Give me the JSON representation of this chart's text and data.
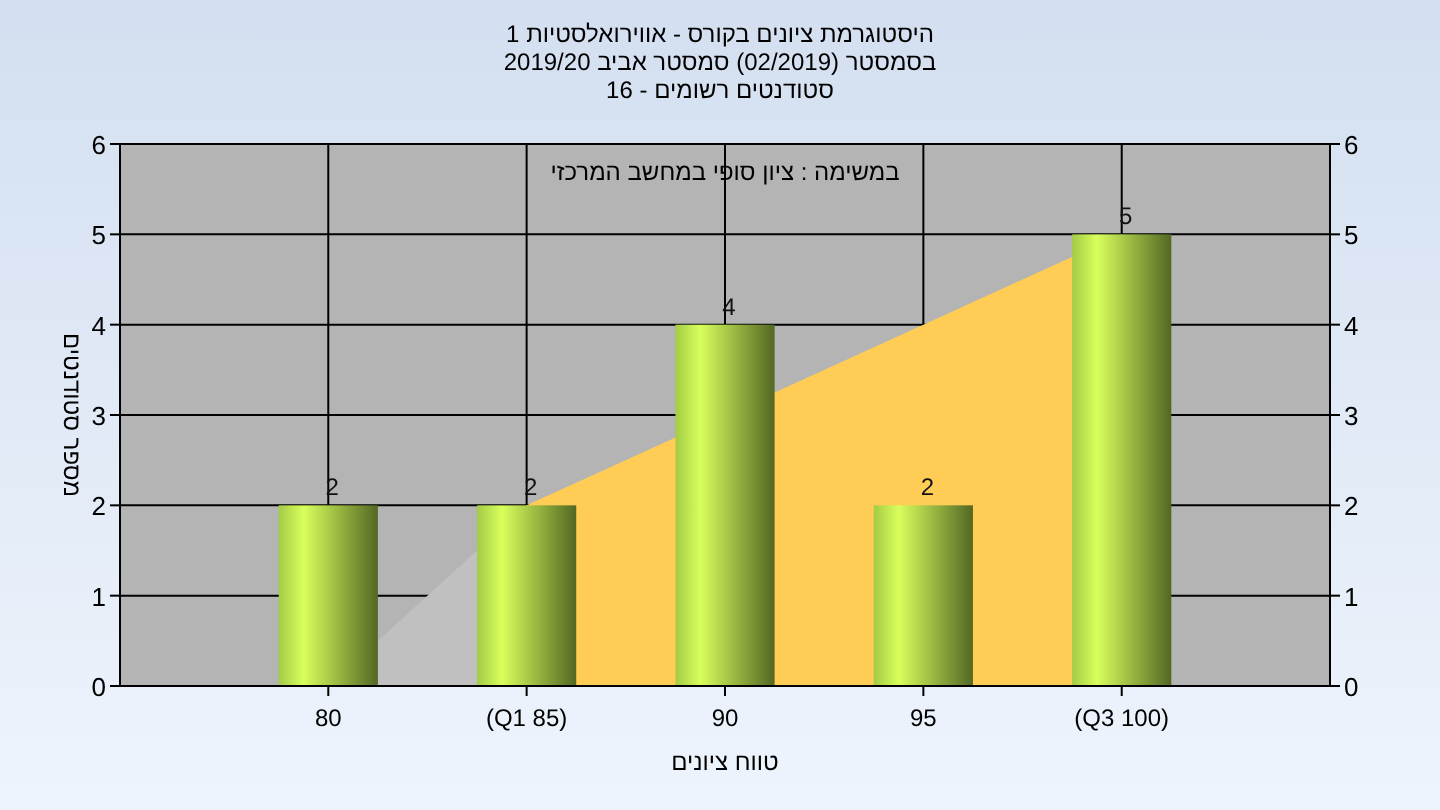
{
  "chart_data": {
    "type": "bar",
    "title": "היסטוגרמת ציונים בקורס - אווירואלסטיות 1",
    "subtitle": "בסמסטר  (02/2019)  סמסטר אביב 2019/20\nסטודנטים רשומים - 16",
    "xlabel": "טווח ציונים",
    "ylabel": "מספר סטודנטים",
    "annotations": [
      "במשימה : ציון סופי במחשב המרכזי"
    ],
    "categories": [
      "80",
      "(Q1 85)",
      "90",
      "95",
      "(Q3 100)"
    ],
    "series": [
      {
        "type": "area",
        "color": "#c0c0c0",
        "values": [
          0,
          2,
          null,
          null,
          null
        ]
      },
      {
        "type": "area",
        "color": "#ffcc55",
        "values": [
          null,
          2,
          null,
          4,
          5
        ]
      },
      {
        "color": "#8db03c",
        "values": [
          2,
          2,
          4,
          2,
          5
        ],
        "value_labels": [
          "2",
          "2",
          "4",
          "2",
          "5"
        ]
      }
    ],
    "ylim": [
      0,
      6
    ],
    "yticks": [
      0,
      1,
      2,
      3,
      4,
      5,
      6
    ],
    "y2lim": [
      0,
      6
    ],
    "y2ticks": [
      0,
      1,
      2,
      3,
      4,
      5,
      6
    ],
    "grid": true
  }
}
